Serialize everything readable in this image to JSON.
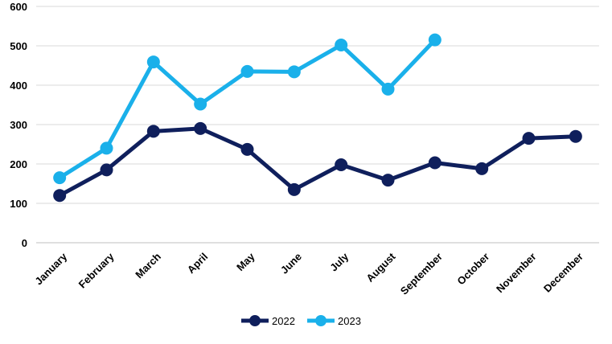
{
  "chart_data": {
    "type": "line",
    "categories": [
      "January",
      "February",
      "March",
      "April",
      "May",
      "June",
      "July",
      "August",
      "September",
      "October",
      "November",
      "December"
    ],
    "series": [
      {
        "name": "2022",
        "color": "#0f1f5c",
        "values": [
          120,
          185,
          283,
          290,
          237,
          135,
          198,
          159,
          203,
          188,
          265,
          270
        ]
      },
      {
        "name": "2023",
        "color": "#1ab0ea",
        "values": [
          165,
          240,
          459,
          352,
          435,
          434,
          502,
          390,
          515,
          null,
          null,
          null
        ]
      }
    ],
    "ylim": [
      0,
      600
    ],
    "yticks": [
      0,
      100,
      200,
      300,
      400,
      500,
      600
    ],
    "grid": true,
    "legend": "bottom"
  }
}
